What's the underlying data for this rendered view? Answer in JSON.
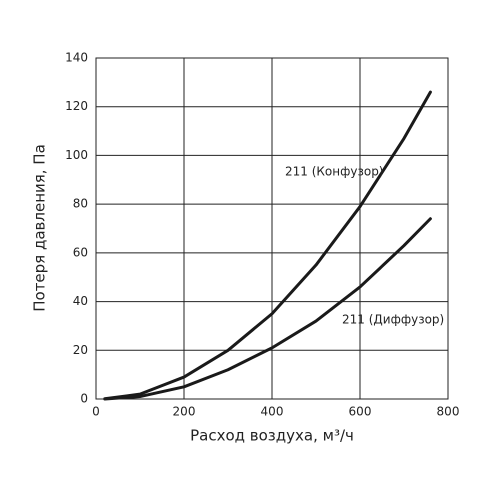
{
  "chart_data": {
    "type": "line",
    "x_label": "Расход воздуха, м³/ч",
    "y_label": "Потеря давления, Па",
    "x": [
      20,
      100,
      200,
      300,
      400,
      500,
      600,
      700,
      760
    ],
    "series": [
      {
        "name": "211 (Конфузор)",
        "color": "#1a1a1a",
        "values": [
          0.1,
          2,
          9,
          20,
          35,
          55,
          79,
          107,
          126
        ]
      },
      {
        "name": "211 (Диффузор)",
        "color": "#1a1a1a",
        "values": [
          0,
          1,
          5,
          12,
          21,
          32,
          46,
          63,
          74
        ]
      }
    ],
    "xlim": [
      0,
      800
    ],
    "xticks": [
      0,
      200,
      400,
      600,
      800
    ],
    "ylim": [
      0,
      140
    ],
    "yticks": [
      0,
      20,
      40,
      60,
      80,
      100,
      120,
      140
    ],
    "grid": true
  }
}
